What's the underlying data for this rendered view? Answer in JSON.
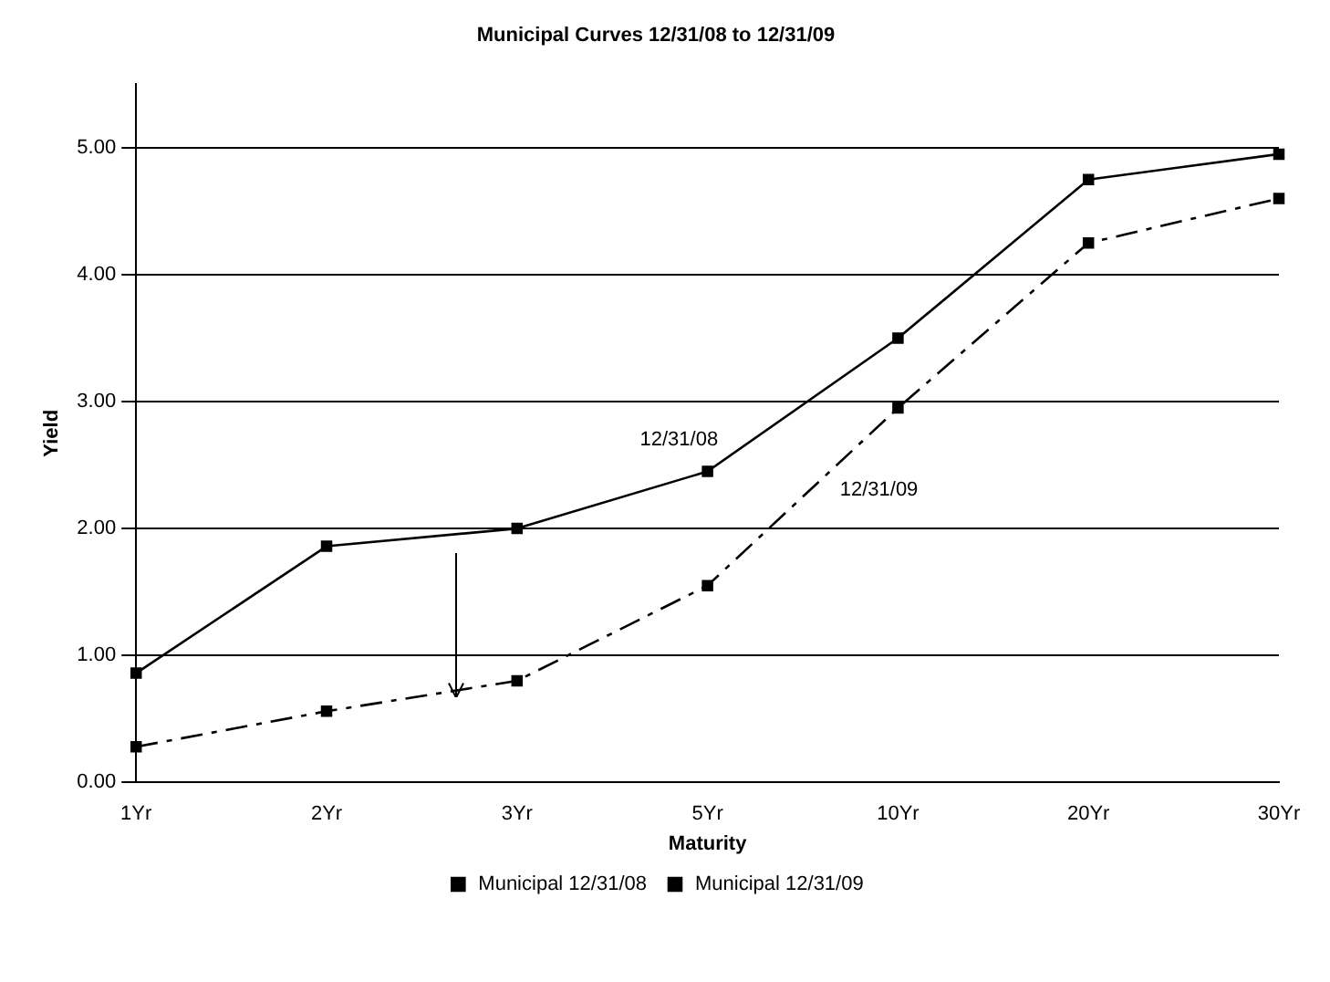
{
  "chart_data": {
    "type": "line",
    "title": "Municipal Curves 12/31/08 to 12/31/09",
    "xlabel": "Maturity",
    "ylabel": "Yield",
    "categories": [
      "1Yr",
      "2Yr",
      "3Yr",
      "5Yr",
      "10Yr",
      "20Yr",
      "30Yr"
    ],
    "series": [
      {
        "name": "Municipal 12/31/08",
        "color": "#000000",
        "line_style": "solid",
        "values": [
          0.86,
          1.86,
          2.0,
          2.45,
          3.5,
          4.75,
          4.95
        ]
      },
      {
        "name": "Municipal 12/31/09",
        "color": "#000000",
        "line_style": "dashed",
        "values": [
          0.28,
          0.56,
          0.8,
          1.55,
          2.95,
          4.25,
          4.6
        ]
      }
    ],
    "ylim": [
      0,
      5.5
    ],
    "yticks": [
      {
        "value": 0,
        "label": "0.00"
      },
      {
        "value": 1,
        "label": "1.00"
      },
      {
        "value": 2,
        "label": "2.00"
      },
      {
        "value": 3,
        "label": "3.00"
      },
      {
        "value": 4,
        "label": "4.00"
      },
      {
        "value": 5,
        "label": "5.00"
      }
    ],
    "grid": "y",
    "legend": "bottom",
    "marker": "square",
    "annotations": [
      "12/31/08",
      "12/31/09"
    ]
  }
}
